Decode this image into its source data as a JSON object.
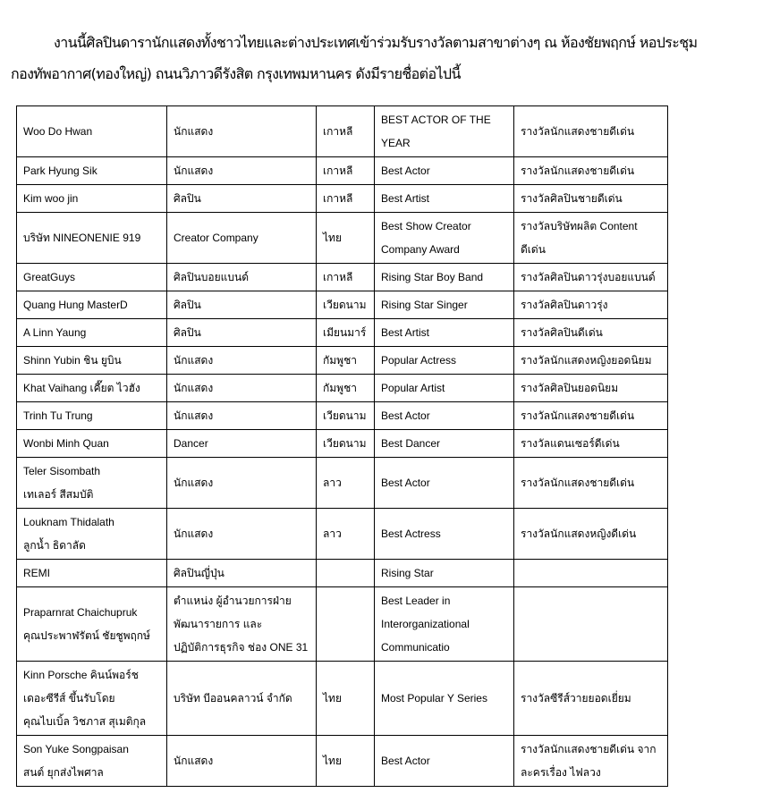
{
  "intro": {
    "line1": "งานนี้ศิลปินดารานักแสดงทั้งชาวไทยและต่างประเทศเข้าร่วมรับรางวัลตามสาขาต่างๆ ณ ห้องชัยพฤกษ์ หอประชุม",
    "line2": "กองทัพอากาศ(ทองใหญ่) ถนนวิภาวดีรังสิต กรุงเทพมหานคร ดังมีรายชื่อต่อไปนี้"
  },
  "table": {
    "rows": [
      [
        "Woo Do Hwan",
        "นักแสดง",
        "เกาหลี",
        "BEST ACTOR OF THE\nYEAR",
        "รางวัลนักแสดงชายดีเด่น"
      ],
      [
        "Park Hyung Sik",
        "นักแสดง",
        "เกาหลี",
        "Best Actor",
        "รางวัลนักแสดงชายดีเด่น"
      ],
      [
        "Kim woo jin",
        "ศิลปิน",
        "เกาหลี",
        "Best Artist",
        "รางวัลศิลปินชายดีเด่น"
      ],
      [
        "บริษัท NINEONENIE 919",
        "Creator Company",
        "ไทย",
        "Best Show Creator\nCompany Award",
        "รางวัลบริษัทผลิต Content\nดีเด่น"
      ],
      [
        "GreatGuys",
        "ศิลปินบอยแบนด์",
        "เกาหลี",
        "Rising Star Boy Band",
        "รางวัลศิลปินดาวรุ่งบอยแบนด์"
      ],
      [
        "Quang Hung MasterD",
        "ศิลปิน",
        "เวียดนาม",
        "Rising Star Singer",
        "รางวัลศิลปินดาวรุ่ง"
      ],
      [
        "A Linn Yaung",
        "ศิลปิน",
        "เมียนมาร์",
        "Best Artist",
        "รางวัลศิลปินดีเด่น"
      ],
      [
        "Shinn Yubin ชิน ยูบิน",
        "นักแสดง",
        "กัมพูชา",
        "Popular Actress",
        "รางวัลนักแสดงหญิงยอดนิยม"
      ],
      [
        "Khat Vaihang เคี๊ยต ไวฮัง",
        "นักแสดง",
        "กัมพูชา",
        "Popular Artist",
        "รางวัลศิลปินยอดนิยม"
      ],
      [
        "Trinh Tu Trung",
        "นักแสดง",
        "เวียดนาม",
        "Best Actor",
        "รางวัลนักแสดงชายดีเด่น"
      ],
      [
        "Wonbi Minh Quan",
        "Dancer",
        "เวียดนาม",
        "Best Dancer",
        "รางวัลแดนเซอร์ดีเด่น"
      ],
      [
        "Teler Sisombath\nเทเลอร์ สีสมบัติ",
        "นักแสดง",
        "ลาว",
        "Best Actor",
        "รางวัลนักแสดงชายดีเด่น"
      ],
      [
        "Louknam Thidalath\nลูกน้ำ ธิดาลัด",
        "นักแสดง",
        "ลาว",
        "Best Actress",
        "รางวัลนักแสดงหญิงดีเด่น"
      ],
      [
        "REMI",
        "ศิลปินญี่ปุ่น",
        "",
        "Rising Star",
        ""
      ],
      [
        "Praparnrat Chaichupruk\nคุณประพาฬรัตน์ ชัยชูพฤกษ์",
        "ตำแหน่ง ผู้อำนวยการฝ่าย\nพัฒนารายการ และ\nปฏิบัติการธุรกิจ ช่อง ONE 31",
        "",
        "Best Leader in\nInterorganizational\nCommunicatio",
        ""
      ],
      [
        "Kinn Porsche คินน์พอร์ช\nเดอะซีรีส์ ขึ้นรับโดย\nคุณไบเบิ้ล วิชภาส สุเมติกุล",
        "บริษัท บีออนคลาวน์ จำกัด",
        "ไทย",
        "Most Popular Y Series",
        "รางวัลซีรีส์วายยอดเยี่ยม"
      ],
      [
        "Son Yuke Songpaisan\nสนต์ ยุกส่งไพศาล",
        "นักแสดง",
        "ไทย",
        "Best Actor",
        "รางวัลนักแสดงชายดีเด่น จาก\nละครเรื่อง ไฟลวง"
      ]
    ]
  }
}
